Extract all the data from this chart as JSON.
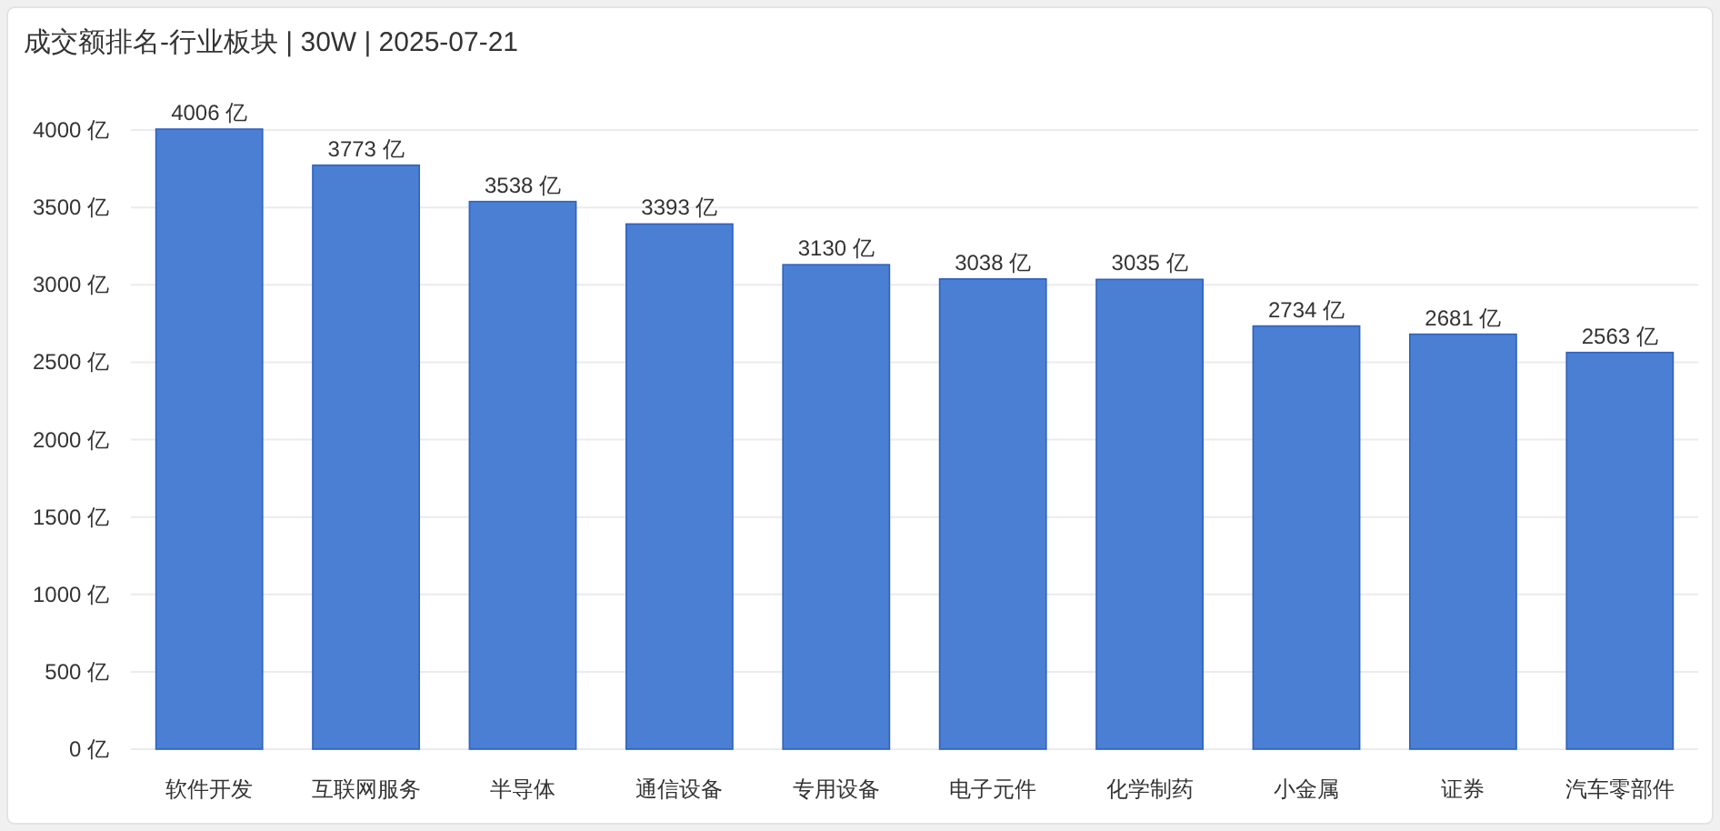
{
  "chart_data": {
    "type": "bar",
    "title": "成交额排名-行业板块 | 30W | 2025-07-21",
    "categories": [
      "软件开发",
      "互联网服务",
      "半导体",
      "通信设备",
      "专用设备",
      "电子元件",
      "化学制药",
      "小金属",
      "证券",
      "汽车零部件"
    ],
    "values": [
      4006,
      3773,
      3538,
      3393,
      3130,
      3038,
      3035,
      2734,
      2681,
      2563
    ],
    "value_labels": [
      "4006 亿",
      "3773 亿",
      "3538 亿",
      "3393 亿",
      "3130 亿",
      "3038 亿",
      "3035 亿",
      "2734 亿",
      "2681 亿",
      "2563 亿"
    ],
    "color": "#4a7fd4",
    "ylim": [
      0,
      4006
    ],
    "yticks": [
      {
        "value": 0,
        "label": "0 亿"
      },
      {
        "value": 500,
        "label": "500 亿"
      },
      {
        "value": 1000,
        "label": "1000 亿"
      },
      {
        "value": 1500,
        "label": "1500 亿"
      },
      {
        "value": 2000,
        "label": "2000 亿"
      },
      {
        "value": 2500,
        "label": "2500 亿"
      },
      {
        "value": 3000,
        "label": "3000 亿"
      },
      {
        "value": 3500,
        "label": "3500 亿"
      },
      {
        "value": 4000,
        "label": "4000 亿"
      }
    ],
    "grid": "y"
  }
}
